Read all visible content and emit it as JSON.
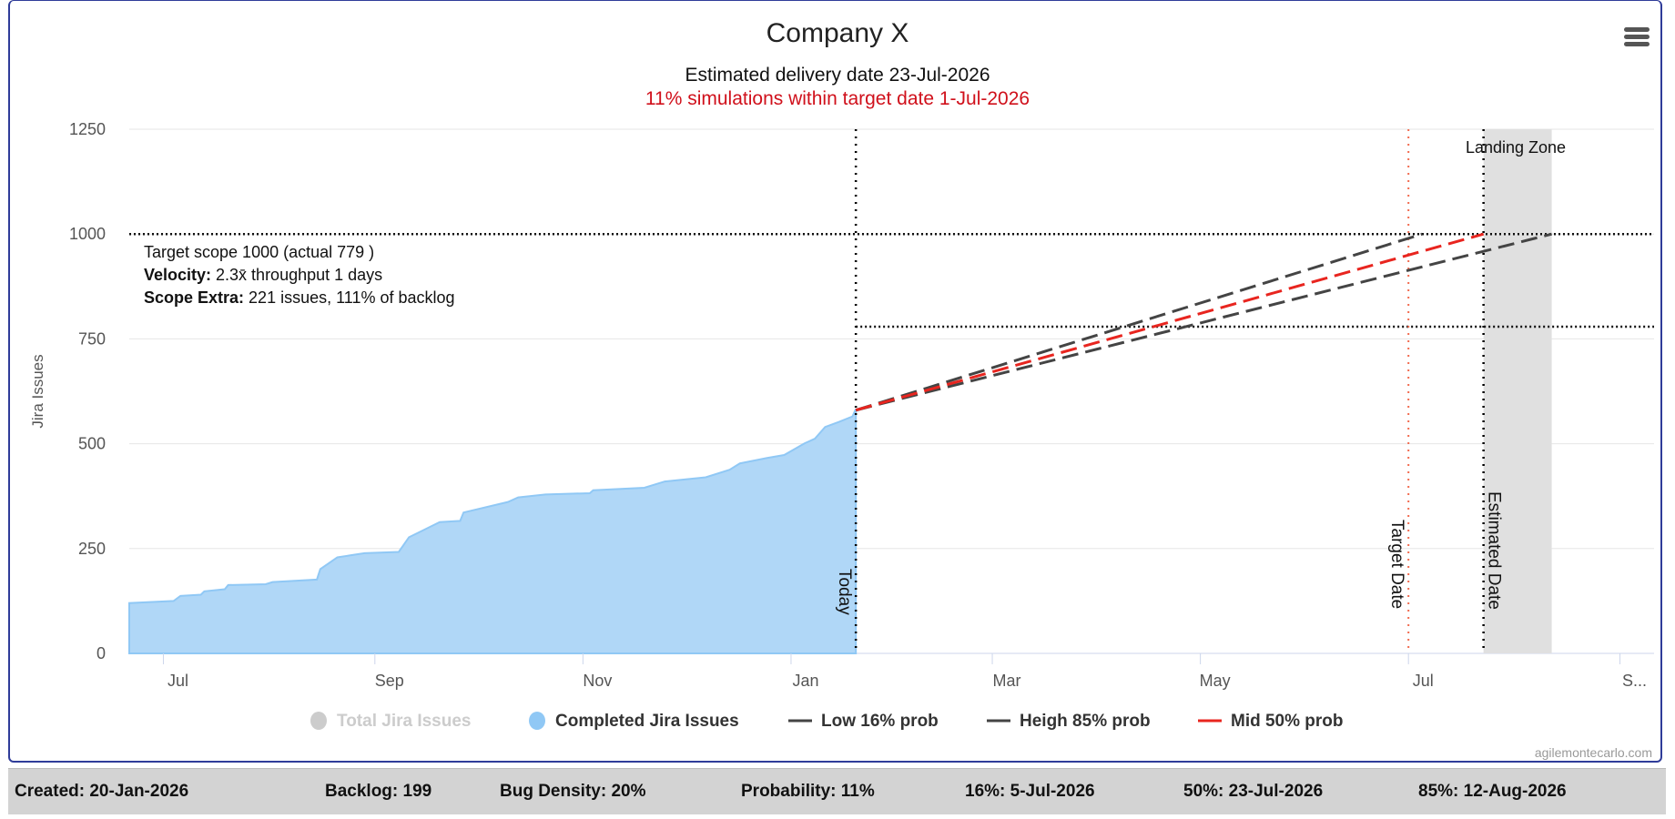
{
  "chart_data": {
    "type": "area",
    "title": "Company X",
    "subtitle": "Estimated delivery date 23-Jul-2026",
    "subtitle2": "11% simulations within target date 1-Jul-2026",
    "ylabel": "Jira Issues",
    "ylim": [
      0,
      1250
    ],
    "yticks": [
      "0",
      "250",
      "500",
      "750",
      "1000",
      "1250"
    ],
    "xlim": [
      "2025-06-21",
      "2026-09-11"
    ],
    "xticks": [
      {
        "date": "2025-07-01",
        "label": "Jul"
      },
      {
        "date": "2025-09-01",
        "label": "Sep"
      },
      {
        "date": "2025-11-01",
        "label": "Nov"
      },
      {
        "date": "2026-01-01",
        "label": "Jan"
      },
      {
        "date": "2026-03-01",
        "label": "Mar"
      },
      {
        "date": "2026-05-01",
        "label": "May"
      },
      {
        "date": "2026-07-01",
        "label": "Jul"
      },
      {
        "date": "2026-09-01",
        "label": "S..."
      }
    ],
    "grid": true,
    "legend_position": "bottom",
    "series": [
      {
        "name": "Total Jira Issues",
        "color": "#cccccc",
        "hidden": true
      },
      {
        "name": "Completed Jira Issues",
        "color": "#90c8f5",
        "type": "area",
        "points": [
          [
            "2025-06-21",
            120
          ],
          [
            "2025-07-04",
            125
          ],
          [
            "2025-07-06",
            137
          ],
          [
            "2025-07-12",
            140
          ],
          [
            "2025-07-13",
            148
          ],
          [
            "2025-07-19",
            153
          ],
          [
            "2025-07-20",
            163
          ],
          [
            "2025-07-31",
            165
          ],
          [
            "2025-08-02",
            170
          ],
          [
            "2025-08-15",
            176
          ],
          [
            "2025-08-16",
            201
          ],
          [
            "2025-08-21",
            229
          ],
          [
            "2025-08-25",
            234
          ],
          [
            "2025-08-29",
            239
          ],
          [
            "2025-09-08",
            242
          ],
          [
            "2025-09-11",
            277
          ],
          [
            "2025-09-15",
            293
          ],
          [
            "2025-09-20",
            313
          ],
          [
            "2025-09-26",
            316
          ],
          [
            "2025-09-27",
            336
          ],
          [
            "2025-10-10",
            361
          ],
          [
            "2025-10-13",
            372
          ],
          [
            "2025-10-21",
            379
          ],
          [
            "2025-11-03",
            382
          ],
          [
            "2025-11-04",
            389
          ],
          [
            "2025-11-19",
            395
          ],
          [
            "2025-11-25",
            410
          ],
          [
            "2025-12-07",
            420
          ],
          [
            "2025-12-14",
            438
          ],
          [
            "2025-12-17",
            453
          ],
          [
            "2025-12-25",
            466
          ],
          [
            "2025-12-30",
            473
          ],
          [
            "2026-01-05",
            501
          ],
          [
            "2026-01-08",
            512
          ],
          [
            "2026-01-11",
            540
          ],
          [
            "2026-01-15",
            552
          ],
          [
            "2026-01-19",
            565
          ],
          [
            "2026-01-20",
            583
          ]
        ]
      },
      {
        "name": "Low 16% prob",
        "color": "#444444",
        "type": "dashed",
        "points": [
          [
            "2026-01-20",
            580
          ],
          [
            "2026-07-05",
            1000
          ]
        ]
      },
      {
        "name": "Heigh 85% prob",
        "color": "#444444",
        "type": "dashed",
        "points": [
          [
            "2026-01-20",
            580
          ],
          [
            "2026-08-12",
            1000
          ]
        ]
      },
      {
        "name": "Mid 50% prob",
        "color": "#e8251f",
        "type": "dashed",
        "points": [
          [
            "2026-01-20",
            580
          ],
          [
            "2026-07-23",
            1000
          ]
        ]
      }
    ],
    "plot_lines": [
      {
        "label": "Today",
        "date": "2026-01-20",
        "color": "#000000"
      },
      {
        "label": "Target Date",
        "date": "2026-07-01",
        "color": "#f26b4f"
      },
      {
        "label": "Estimated Date",
        "date": "2026-07-23",
        "color": "#000000"
      }
    ],
    "plot_band": {
      "label": "Landing Zone",
      "from": "2026-07-23",
      "to": "2026-08-12",
      "color": "#e0e0e0"
    },
    "scope_lines": [
      {
        "value": 1000,
        "from": "2025-06-21"
      },
      {
        "value": 779,
        "from": "2026-01-20"
      }
    ],
    "annotation": {
      "line1": "Target scope 1000 (actual 779 )",
      "line2_bold": "Velocity:",
      "line2": " 2.3x̄ throughput 1 days",
      "line3_bold": "Scope Extra:",
      "line3": " 221 issues, 111% of backlog"
    },
    "credits": "agilemontecarlo.com"
  },
  "footer": {
    "created": "Created: 20-Jan-2026",
    "backlog": "Backlog: 199",
    "bug_density": "Bug Density: 20%",
    "probability": "Probability: 11%",
    "p16": "16%: 5-Jul-2026",
    "p50": "50%: 23-Jul-2026",
    "p85": "85%: 12-Aug-2026"
  }
}
